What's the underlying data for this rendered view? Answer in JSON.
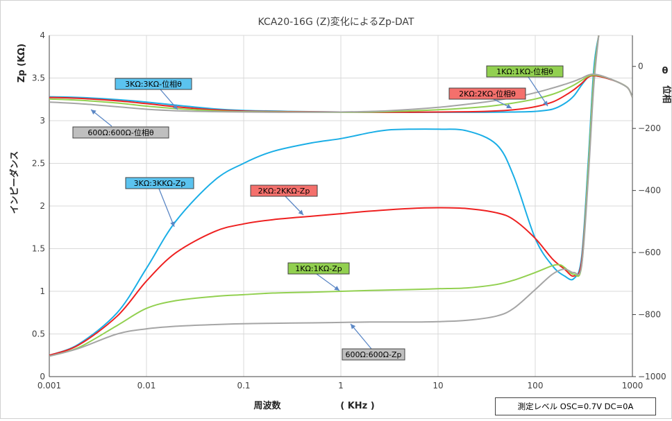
{
  "chart_data": {
    "type": "line",
    "title": "KCA20-16G (Z)変化によるZp-DAT",
    "xlabel": "周波数",
    "xunit": "( KHz )",
    "ylabel_left_top": "Zp (KΩ)",
    "ylabel_left": "インピーダンス",
    "ylabel_right_top": "θ",
    "ylabel_right": "位相",
    "x_scale": "log",
    "xlim": [
      0.001,
      1000
    ],
    "ylim_left": [
      0,
      4
    ],
    "ylim_right": [
      -1000,
      100
    ],
    "x_ticks": [
      "0.001",
      "0.01",
      "0.1",
      "1",
      "10",
      "100",
      "1000"
    ],
    "y_ticks_left": [
      "0",
      "0.5",
      "1",
      "1.5",
      "2",
      "2.5",
      "3",
      "3.5",
      "4"
    ],
    "y_ticks_right": [
      "−1000",
      "−800",
      "−600",
      "−400",
      "−200",
      "0"
    ],
    "grid": true,
    "note": "測定レベル  OSC=0.7V  DC=0A",
    "colors": {
      "3K": "#1aaee6",
      "2K": "#ee2020",
      "1K": "#92d050",
      "600": "#a5a5a5",
      "axis": "#404040",
      "grid": "#d9d9d9"
    },
    "series": [
      {
        "name": "3KΩ:3KKΩ-Zp",
        "axis": "left",
        "color": "#1aaee6",
        "x": [
          0.001,
          0.002,
          0.005,
          0.01,
          0.02,
          0.05,
          0.1,
          0.2,
          0.5,
          1,
          2,
          3,
          5,
          10,
          20,
          40,
          60,
          100,
          150,
          200,
          250,
          300,
          350,
          400,
          450
        ],
        "y": [
          0.25,
          0.38,
          0.75,
          1.27,
          1.82,
          2.3,
          2.5,
          2.64,
          2.74,
          2.79,
          2.86,
          2.89,
          2.9,
          2.9,
          2.88,
          2.72,
          2.35,
          1.62,
          1.3,
          1.18,
          1.15,
          1.4,
          2.5,
          3.6,
          4.0
        ]
      },
      {
        "name": "2KΩ:2KKΩ-Zp",
        "axis": "left",
        "color": "#ee2020",
        "x": [
          0.001,
          0.002,
          0.005,
          0.01,
          0.02,
          0.05,
          0.1,
          0.2,
          0.5,
          1,
          2,
          5,
          10,
          20,
          40,
          60,
          100,
          150,
          200,
          250,
          300,
          350,
          400,
          450
        ],
        "y": [
          0.25,
          0.37,
          0.71,
          1.12,
          1.45,
          1.7,
          1.79,
          1.84,
          1.88,
          1.91,
          1.94,
          1.97,
          1.98,
          1.97,
          1.92,
          1.84,
          1.62,
          1.38,
          1.26,
          1.18,
          1.35,
          2.4,
          3.5,
          4.0
        ]
      },
      {
        "name": "1KΩ:1KΩ-Zp",
        "axis": "left",
        "color": "#92d050",
        "x": [
          0.001,
          0.002,
          0.005,
          0.01,
          0.02,
          0.05,
          0.1,
          0.2,
          0.5,
          1,
          2,
          5,
          10,
          20,
          40,
          60,
          100,
          150,
          180,
          200,
          250,
          300,
          350,
          400,
          450
        ],
        "y": [
          0.24,
          0.34,
          0.6,
          0.8,
          0.89,
          0.94,
          0.96,
          0.98,
          0.99,
          1.0,
          1.01,
          1.02,
          1.03,
          1.04,
          1.08,
          1.13,
          1.22,
          1.3,
          1.31,
          1.28,
          1.2,
          1.3,
          2.4,
          3.5,
          4.0
        ]
      },
      {
        "name": "600Ω:600Ω-Zp",
        "axis": "left",
        "color": "#a5a5a5",
        "x": [
          0.001,
          0.002,
          0.005,
          0.01,
          0.02,
          0.05,
          0.1,
          0.2,
          0.5,
          1,
          2,
          5,
          10,
          20,
          40,
          60,
          100,
          150,
          200,
          250,
          300,
          350,
          400,
          450
        ],
        "y": [
          0.24,
          0.33,
          0.5,
          0.56,
          0.59,
          0.61,
          0.62,
          0.625,
          0.63,
          0.635,
          0.64,
          0.64,
          0.645,
          0.66,
          0.71,
          0.8,
          1.02,
          1.2,
          1.26,
          1.22,
          1.3,
          2.3,
          3.4,
          4.0
        ]
      },
      {
        "name": "3KΩ:3KΩ-位相θ",
        "axis": "right",
        "color": "#1aaee6",
        "x": [
          0.001,
          0.002,
          0.005,
          0.01,
          0.02,
          0.05,
          0.1,
          0.3,
          1,
          3,
          10,
          30,
          60,
          100,
          150,
          200,
          250,
          300,
          350,
          400,
          500,
          700,
          900,
          1000
        ],
        "y": [
          -98,
          -100,
          -107,
          -115,
          -125,
          -137,
          -142,
          -145,
          -147,
          -148,
          -148,
          -148,
          -147,
          -145,
          -138,
          -120,
          -95,
          -60,
          -35,
          -30,
          -35,
          -50,
          -70,
          -100
        ]
      },
      {
        "name": "2KΩ:2KΩ-位相θ",
        "axis": "right",
        "color": "#ee2020",
        "x": [
          0.001,
          0.002,
          0.005,
          0.01,
          0.02,
          0.05,
          0.1,
          0.3,
          1,
          3,
          10,
          30,
          60,
          100,
          150,
          200,
          250,
          300,
          350,
          400,
          500,
          700,
          900,
          1000
        ],
        "y": [
          -100,
          -103,
          -111,
          -120,
          -130,
          -140,
          -144,
          -146,
          -147,
          -148,
          -147,
          -145,
          -140,
          -130,
          -115,
          -95,
          -75,
          -55,
          -35,
          -30,
          -35,
          -50,
          -70,
          -100
        ]
      },
      {
        "name": "1KΩ:1KΩ-位相θ",
        "axis": "right",
        "color": "#92d050",
        "x": [
          0.001,
          0.002,
          0.005,
          0.01,
          0.02,
          0.05,
          0.1,
          0.3,
          1,
          3,
          10,
          30,
          60,
          100,
          150,
          200,
          250,
          300,
          350,
          400,
          500,
          700,
          900,
          1000
        ],
        "y": [
          -105,
          -109,
          -118,
          -128,
          -136,
          -143,
          -146,
          -147,
          -148,
          -146,
          -140,
          -130,
          -118,
          -105,
          -90,
          -75,
          -60,
          -45,
          -32,
          -28,
          -33,
          -50,
          -70,
          -100
        ]
      },
      {
        "name": "600Ω:600Ω-位相θ",
        "axis": "right",
        "color": "#a5a5a5",
        "x": [
          0.001,
          0.002,
          0.005,
          0.01,
          0.02,
          0.05,
          0.1,
          0.3,
          1,
          3,
          10,
          30,
          60,
          100,
          150,
          200,
          250,
          300,
          350,
          400,
          500,
          700,
          900,
          1000
        ],
        "y": [
          -115,
          -120,
          -130,
          -138,
          -143,
          -146,
          -147,
          -148,
          -147,
          -143,
          -132,
          -115,
          -100,
          -85,
          -70,
          -58,
          -48,
          -38,
          -28,
          -25,
          -32,
          -50,
          -70,
          -100
        ]
      }
    ],
    "annotations": [
      {
        "text": "3KΩ:3KΩ-位相θ",
        "fill": "#5bc3ef"
      },
      {
        "text": "600Ω:600Ω-位相θ",
        "fill": "#bfbfbf"
      },
      {
        "text": "1KΩ:1KΩ-位相θ",
        "fill": "#92d050"
      },
      {
        "text": "2KΩ:2KΩ-位相θ",
        "fill": "#f4706c"
      },
      {
        "text": "3KΩ:3KKΩ-Zp",
        "fill": "#5bc3ef"
      },
      {
        "text": "2KΩ:2KKΩ-Zp",
        "fill": "#f4706c"
      },
      {
        "text": "1KΩ:1KΩ-Zp",
        "fill": "#92d050"
      },
      {
        "text": "600Ω:600Ω-Zp",
        "fill": "#bfbfbf"
      }
    ]
  }
}
